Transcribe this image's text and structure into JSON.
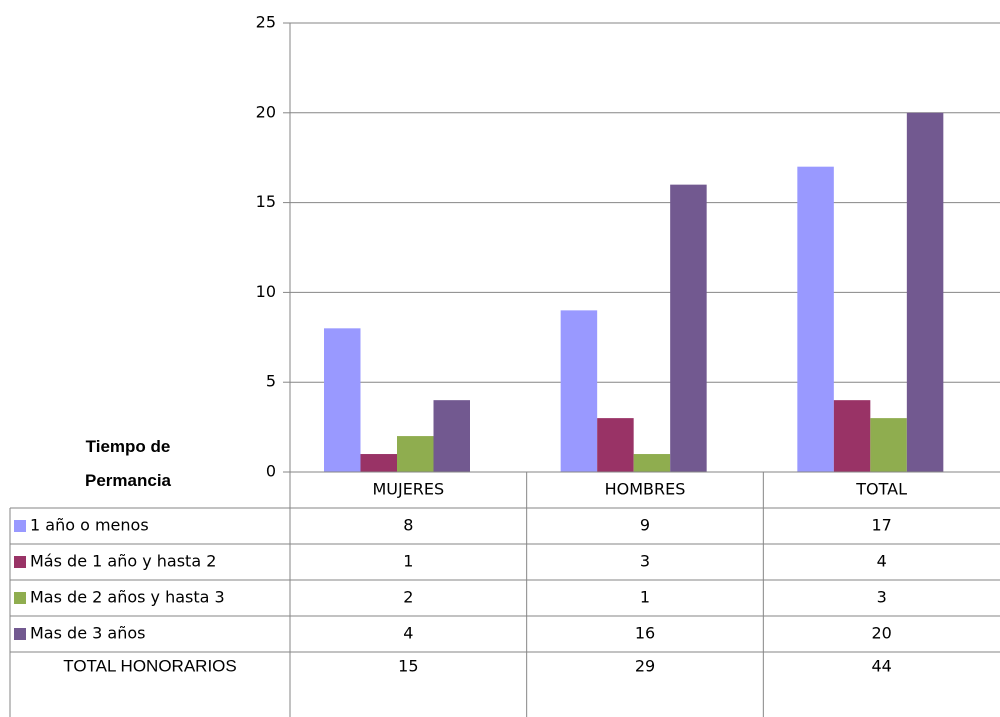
{
  "chart_data": {
    "type": "bar",
    "table_title": "Tiempo de Permancia",
    "categories": [
      "MUJERES",
      "HOMBRES",
      "TOTAL"
    ],
    "series": [
      {
        "name": "1 año o menos",
        "color": "#9999ff",
        "values": [
          8,
          9,
          17
        ]
      },
      {
        "name": "Más de 1 año y hasta 2",
        "color": "#993366",
        "values": [
          1,
          3,
          4
        ]
      },
      {
        "name": "Mas de 2 años y hasta 3",
        "color": "#8fad4f",
        "values": [
          2,
          1,
          3
        ]
      },
      {
        "name": "Mas de 3 años",
        "color": "#725990",
        "values": [
          4,
          16,
          20
        ]
      }
    ],
    "table_total": {
      "label": "TOTAL HONORARIOS",
      "values": [
        15,
        29,
        44
      ]
    },
    "ylim": [
      0,
      25
    ],
    "yticks": [
      0,
      5,
      10,
      15,
      20,
      25
    ],
    "grid": true
  }
}
